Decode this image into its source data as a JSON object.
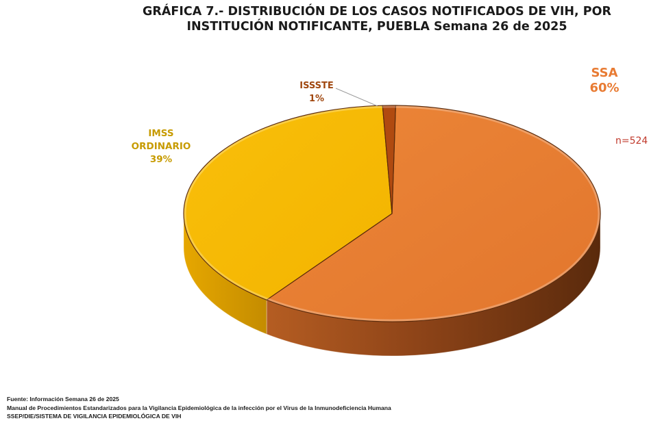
{
  "chart_data": {
    "type": "pie",
    "title": [
      "GRÁFICA 7.- DISTRIBUCIÓN DE LOS CASOS NOTIFICADOS DE VIH, POR",
      "INSTITUCIÓN NOTIFICANTE, PUEBLA Semana 26 de 2025"
    ],
    "n_label": "n=524",
    "legend": "none",
    "slices": [
      {
        "name": "SSA",
        "value": 60,
        "pct_label": "60%",
        "color": "#E87B33",
        "label_color": "#E87B33",
        "label_lines": [
          "SSA",
          "60%"
        ]
      },
      {
        "name": "IMSS ORDINARIO",
        "value": 39,
        "pct_label": "39%",
        "color": "#F7B900",
        "label_color": "#C79B00",
        "label_lines": [
          "IMSS",
          "ORDINARIO",
          "39%"
        ]
      },
      {
        "name": "ISSSTE",
        "value": 1,
        "pct_label": "1%",
        "color": "#B04A10",
        "label_color": "#A0470F",
        "label_lines": [
          "ISSSTE",
          "1%"
        ]
      }
    ]
  },
  "colors": {
    "n_label": "#C0392B",
    "title": "#1a1a1a"
  },
  "footer": {
    "source": "Fuente: Información Semana 26 de 2025",
    "manual": "Manual de Procedimientos Estandarizados para la Vigilancia Epidemiológica de la infección por el Virus de la Inmunodeficiencia Humana",
    "system": "SSEP/DIE/SISTEMA DE VIGILANCIA EPIDEMIOLÓGICA DE VIH"
  }
}
